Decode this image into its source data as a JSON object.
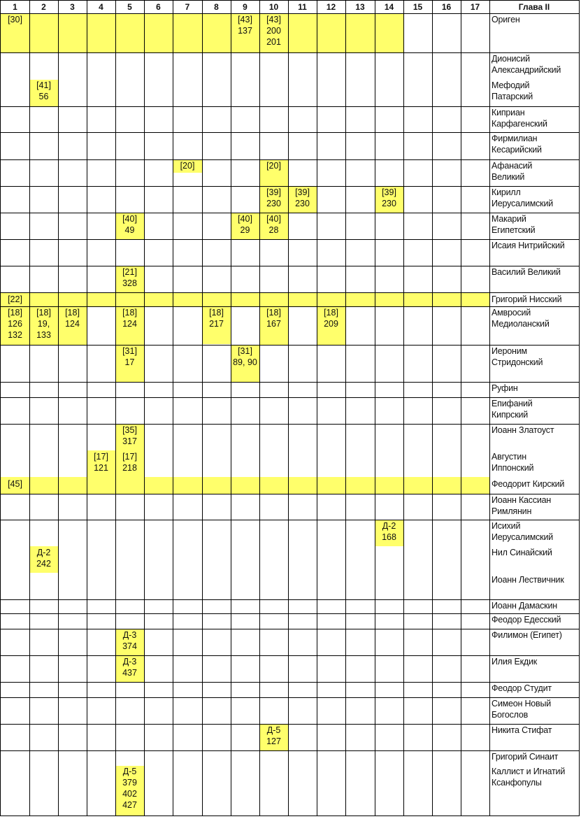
{
  "header": {
    "columns": [
      "1",
      "2",
      "3",
      "4",
      "5",
      "6",
      "7",
      "8",
      "9",
      "10",
      "11",
      "12",
      "13",
      "14",
      "15",
      "16",
      "17"
    ],
    "chapter_label": "Глава II"
  },
  "highlight_color": "#ffff6b",
  "rows": [
    {
      "name": [
        "Ориген"
      ],
      "entries": [
        {
          "col": 1,
          "lines": [
            "[30]"
          ]
        },
        {
          "col": 9,
          "lines": [
            "[43]",
            "137"
          ]
        },
        {
          "col": 10,
          "lines": [
            "[43]",
            "200",
            "201"
          ]
        }
      ]
    },
    {
      "name": [
        "Дионисий",
        "Александрийский"
      ],
      "entries": []
    },
    {
      "name": [
        "Мефодий",
        "Патарский"
      ],
      "entries": [
        {
          "col": 2,
          "lines": [
            "[41]",
            "56"
          ]
        }
      ]
    },
    {
      "name": [
        "Киприан",
        "Карфагенский"
      ],
      "entries": []
    },
    {
      "name": [
        "Фирмилиан",
        "Кесарийский"
      ],
      "entries": []
    },
    {
      "name": [
        "Афанасий",
        "Великий"
      ],
      "entries": [
        {
          "col": 7,
          "lines": [
            "[20]"
          ]
        },
        {
          "col": 10,
          "lines": [
            "[20]"
          ]
        }
      ]
    },
    {
      "name": [
        "Кирилл",
        "Иерусалимский"
      ],
      "entries": [
        {
          "col": 10,
          "lines": [
            "[39]",
            "230"
          ]
        },
        {
          "col": 11,
          "lines": [
            "[39]",
            "230"
          ]
        },
        {
          "col": 14,
          "lines": [
            "[39]",
            "230"
          ]
        }
      ]
    },
    {
      "name": [
        "Макарий",
        "Египетский"
      ],
      "entries": [
        {
          "col": 5,
          "lines": [
            "[40]",
            "49"
          ]
        },
        {
          "col": 9,
          "lines": [
            "[40]",
            "29"
          ]
        },
        {
          "col": 10,
          "lines": [
            "[40]",
            "28"
          ]
        }
      ]
    },
    {
      "name": [
        "Исаия Нитрийский"
      ],
      "entries": []
    },
    {
      "name": [
        "Василий Великий"
      ],
      "entries": [
        {
          "col": 5,
          "lines": [
            "[21]",
            "328"
          ]
        }
      ]
    },
    {
      "name": [
        "Григорий Нисский"
      ],
      "entries": [
        {
          "col": 1,
          "lines": [
            "[22]"
          ]
        }
      ]
    },
    {
      "name": [
        "Амвросий",
        "Медиоланский"
      ],
      "entries": [
        {
          "col": 1,
          "lines": [
            "[18]",
            "126",
            "132"
          ]
        },
        {
          "col": 2,
          "lines": [
            "[18]",
            "19,",
            "133"
          ]
        },
        {
          "col": 3,
          "lines": [
            "[18]",
            "124"
          ]
        },
        {
          "col": 5,
          "lines": [
            "[18]",
            "124"
          ]
        },
        {
          "col": 8,
          "lines": [
            "[18]",
            "217"
          ]
        },
        {
          "col": 10,
          "lines": [
            "[18]",
            "167"
          ]
        },
        {
          "col": 12,
          "lines": [
            "[18]",
            "209"
          ]
        }
      ]
    },
    {
      "name": [
        "Иероним",
        "Стридонский"
      ],
      "entries": [
        {
          "col": 5,
          "lines": [
            "[31]",
            "17"
          ]
        },
        {
          "col": 9,
          "lines": [
            "[31]",
            "89, 90"
          ]
        }
      ]
    },
    {
      "name": [
        "Руфин"
      ],
      "entries": []
    },
    {
      "name": [
        "Епифаний",
        "Кипрский"
      ],
      "entries": []
    },
    {
      "name": [
        "Иоанн Златоуст"
      ],
      "entries": [
        {
          "col": 5,
          "lines": [
            "[35]",
            "317"
          ]
        }
      ]
    },
    {
      "name": [
        "Августин",
        "Иппонский"
      ],
      "entries": [
        {
          "col": 4,
          "lines": [
            "[17]",
            "121"
          ]
        },
        {
          "col": 5,
          "lines": [
            "[17]",
            "218"
          ]
        }
      ]
    },
    {
      "name": [
        "Феодорит Кирский"
      ],
      "entries": [
        {
          "col": 1,
          "lines": [
            "[45]"
          ]
        }
      ]
    },
    {
      "name": [
        "Иоанн Кассиан",
        "Римлянин"
      ],
      "entries": []
    },
    {
      "name": [
        "Исихий",
        "Иерусалимский"
      ],
      "entries": [
        {
          "col": 14,
          "lines": [
            "Д-2",
            "168"
          ]
        }
      ]
    },
    {
      "name": [
        "Нил Синайский"
      ],
      "entries": [
        {
          "col": 2,
          "lines": [
            "Д-2",
            "242"
          ]
        }
      ]
    },
    {
      "name": [
        "Иоанн Лествичник"
      ],
      "entries": []
    },
    {
      "name": [
        "Иоанн Дамаскин"
      ],
      "entries": []
    },
    {
      "name": [
        "Феодор Едесский"
      ],
      "entries": []
    },
    {
      "name": [
        "Филимон (Египет)"
      ],
      "entries": [
        {
          "col": 5,
          "lines": [
            "Д-3",
            "374"
          ]
        }
      ]
    },
    {
      "name": [
        "Илия Екдик"
      ],
      "entries": [
        {
          "col": 5,
          "lines": [
            "Д-3",
            "437"
          ]
        }
      ]
    },
    {
      "name": [
        "Феодор Студит"
      ],
      "entries": []
    },
    {
      "name": [
        "Симеон Новый",
        "Богослов"
      ],
      "entries": []
    },
    {
      "name": [
        "Никита Стифат"
      ],
      "entries": [
        {
          "col": 10,
          "lines": [
            "Д-5",
            "127"
          ]
        }
      ]
    },
    {
      "name": [
        "Григорий Синаит"
      ],
      "entries": []
    },
    {
      "name": [
        "Каллист и Игнатий",
        "Ксанфопулы"
      ],
      "entries": [
        {
          "col": 5,
          "lines": [
            "Д-5",
            "379",
            "402",
            "427"
          ]
        }
      ]
    }
  ]
}
